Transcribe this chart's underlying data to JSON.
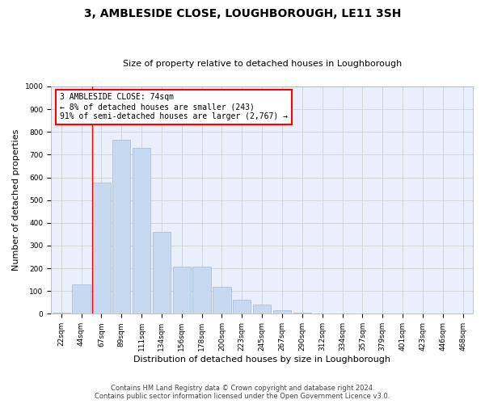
{
  "title": "3, AMBLESIDE CLOSE, LOUGHBOROUGH, LE11 3SH",
  "subtitle": "Size of property relative to detached houses in Loughborough",
  "xlabel": "Distribution of detached houses by size in Loughborough",
  "ylabel": "Number of detached properties",
  "footer_line1": "Contains HM Land Registry data © Crown copyright and database right 2024.",
  "footer_line2": "Contains public sector information licensed under the Open Government Licence v3.0.",
  "annotation_line1": "3 AMBLESIDE CLOSE: 74sqm",
  "annotation_line2": "← 8% of detached houses are smaller (243)",
  "annotation_line3": "91% of semi-detached houses are larger (2,767) →",
  "bar_labels": [
    "22sqm",
    "44sqm",
    "67sqm",
    "89sqm",
    "111sqm",
    "134sqm",
    "156sqm",
    "178sqm",
    "200sqm",
    "223sqm",
    "245sqm",
    "267sqm",
    "290sqm",
    "312sqm",
    "334sqm",
    "357sqm",
    "379sqm",
    "401sqm",
    "423sqm",
    "446sqm",
    "468sqm"
  ],
  "bar_values": [
    4,
    128,
    578,
    767,
    730,
    360,
    207,
    207,
    120,
    60,
    40,
    17,
    5,
    3,
    1,
    0,
    0,
    0,
    3,
    0,
    0
  ],
  "bar_color": "#c6d9f1",
  "bar_edge_color": "#a0b8d8",
  "redline_index": 2,
  "ylim": [
    0,
    1000
  ],
  "yticks": [
    0,
    100,
    200,
    300,
    400,
    500,
    600,
    700,
    800,
    900,
    1000
  ],
  "grid_color": "#cccccc",
  "background_color": "#ffffff",
  "plot_bg_color": "#eaf0fb",
  "title_fontsize": 10,
  "subtitle_fontsize": 8,
  "ylabel_fontsize": 8,
  "xlabel_fontsize": 8,
  "tick_fontsize": 6.5,
  "footer_fontsize": 6,
  "annotation_fontsize": 7
}
